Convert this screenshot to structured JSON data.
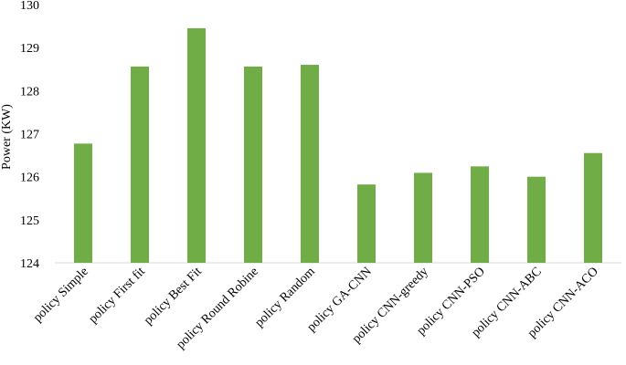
{
  "chart_data": {
    "type": "bar",
    "title": "",
    "xlabel": "",
    "ylabel": "Power (KW)",
    "ylim": [
      124,
      130
    ],
    "yticks": [
      124,
      125,
      126,
      127,
      128,
      129,
      130
    ],
    "grid": false,
    "legend": "none",
    "bar_color": "#70ad47",
    "categories": [
      "policy Simple",
      "policy First fit",
      "policy Best Fit",
      "policy Round Robine",
      "policy Random",
      "policy GA-CNN",
      "policy CNN-greedy",
      "policy CNN-PSO",
      "policy CNN-ABC",
      "policy CNN-ACO"
    ],
    "values": [
      126.77,
      128.56,
      129.45,
      128.56,
      128.6,
      125.82,
      126.09,
      126.24,
      126.0,
      126.55
    ]
  }
}
